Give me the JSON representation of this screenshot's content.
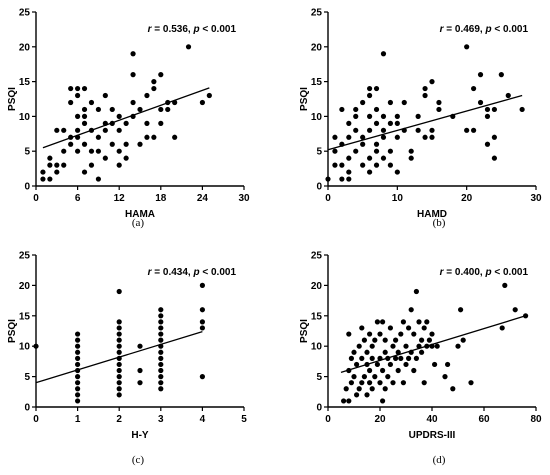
{
  "chart_data": [
    {
      "type": "scatter",
      "panel": "(a)",
      "xlabel": "HAMA",
      "ylabel": "PSQI",
      "xlim": [
        0,
        30
      ],
      "ylim": [
        0,
        25
      ],
      "xticks": [
        0,
        6,
        12,
        18,
        24,
        30
      ],
      "yticks": [
        0,
        5,
        10,
        15,
        20,
        25
      ],
      "annotation": {
        "r_label": "r",
        "r_value": "= 0.536, ",
        "p_label": "p",
        "p_value": " < 0.001"
      },
      "fit_line": {
        "x": [
          1,
          25
        ],
        "y": [
          5.5,
          14.1
        ]
      },
      "points": [
        [
          1,
          1
        ],
        [
          1,
          2
        ],
        [
          2,
          1
        ],
        [
          2,
          3
        ],
        [
          2,
          4
        ],
        [
          3,
          2
        ],
        [
          3,
          3
        ],
        [
          3,
          8
        ],
        [
          4,
          3
        ],
        [
          4,
          5
        ],
        [
          4,
          8
        ],
        [
          5,
          6
        ],
        [
          5,
          7
        ],
        [
          5,
          12
        ],
        [
          5,
          14
        ],
        [
          6,
          5
        ],
        [
          6,
          7
        ],
        [
          6,
          8
        ],
        [
          6,
          10
        ],
        [
          6,
          13
        ],
        [
          6,
          14
        ],
        [
          7,
          2
        ],
        [
          7,
          6
        ],
        [
          7,
          9
        ],
        [
          7,
          10
        ],
        [
          7,
          11
        ],
        [
          7,
          14
        ],
        [
          8,
          3
        ],
        [
          8,
          5
        ],
        [
          8,
          8
        ],
        [
          8,
          12
        ],
        [
          9,
          1
        ],
        [
          9,
          5
        ],
        [
          9,
          7
        ],
        [
          9,
          11
        ],
        [
          10,
          4
        ],
        [
          10,
          8
        ],
        [
          10,
          9
        ],
        [
          10,
          13
        ],
        [
          11,
          6
        ],
        [
          11,
          9
        ],
        [
          11,
          11
        ],
        [
          12,
          3
        ],
        [
          12,
          5
        ],
        [
          12,
          8
        ],
        [
          12,
          10
        ],
        [
          13,
          4
        ],
        [
          13,
          6
        ],
        [
          13,
          9
        ],
        [
          14,
          10
        ],
        [
          14,
          12
        ],
        [
          14,
          16
        ],
        [
          14,
          19
        ],
        [
          15,
          6
        ],
        [
          15,
          11
        ],
        [
          16,
          7
        ],
        [
          16,
          9
        ],
        [
          16,
          13
        ],
        [
          17,
          7
        ],
        [
          17,
          14
        ],
        [
          17,
          15
        ],
        [
          18,
          9
        ],
        [
          18,
          11
        ],
        [
          18,
          16
        ],
        [
          19,
          11
        ],
        [
          19,
          12
        ],
        [
          20,
          7
        ],
        [
          20,
          12
        ],
        [
          22,
          20
        ],
        [
          24,
          12
        ],
        [
          25,
          13
        ]
      ]
    },
    {
      "type": "scatter",
      "panel": "(b)",
      "xlabel": "HAMD",
      "ylabel": "PSQI",
      "xlim": [
        0,
        30
      ],
      "ylim": [
        0,
        25
      ],
      "xticks": [
        0,
        10,
        20,
        30
      ],
      "yticks": [
        0,
        5,
        10,
        15,
        20,
        25
      ],
      "annotation": {
        "r_label": "r",
        "r_value": "= 0.469, ",
        "p_label": "p",
        "p_value": " < 0.001"
      },
      "fit_line": {
        "x": [
          0,
          28
        ],
        "y": [
          5.2,
          13
        ]
      },
      "points": [
        [
          0,
          1
        ],
        [
          1,
          3
        ],
        [
          1,
          5
        ],
        [
          1,
          7
        ],
        [
          2,
          1
        ],
        [
          2,
          3
        ],
        [
          2,
          6
        ],
        [
          2,
          11
        ],
        [
          3,
          1
        ],
        [
          3,
          2
        ],
        [
          3,
          4
        ],
        [
          3,
          7
        ],
        [
          3,
          9
        ],
        [
          4,
          5
        ],
        [
          4,
          8
        ],
        [
          4,
          10
        ],
        [
          4,
          11
        ],
        [
          5,
          3
        ],
        [
          5,
          6
        ],
        [
          5,
          7
        ],
        [
          5,
          12
        ],
        [
          6,
          2
        ],
        [
          6,
          4
        ],
        [
          6,
          8
        ],
        [
          6,
          10
        ],
        [
          6,
          13
        ],
        [
          6,
          14
        ],
        [
          7,
          3
        ],
        [
          7,
          5
        ],
        [
          7,
          6
        ],
        [
          7,
          9
        ],
        [
          7,
          11
        ],
        [
          7,
          14
        ],
        [
          8,
          4
        ],
        [
          8,
          7
        ],
        [
          8,
          8
        ],
        [
          8,
          10
        ],
        [
          8,
          19
        ],
        [
          9,
          3
        ],
        [
          9,
          5
        ],
        [
          9,
          9
        ],
        [
          9,
          12
        ],
        [
          10,
          2
        ],
        [
          10,
          7
        ],
        [
          10,
          9
        ],
        [
          10,
          10
        ],
        [
          11,
          8
        ],
        [
          11,
          12
        ],
        [
          12,
          4
        ],
        [
          12,
          5
        ],
        [
          13,
          8
        ],
        [
          13,
          10
        ],
        [
          14,
          7
        ],
        [
          14,
          13
        ],
        [
          14,
          14
        ],
        [
          15,
          7
        ],
        [
          15,
          8
        ],
        [
          15,
          15
        ],
        [
          16,
          11
        ],
        [
          16,
          12
        ],
        [
          18,
          10
        ],
        [
          20,
          8
        ],
        [
          20,
          20
        ],
        [
          21,
          8
        ],
        [
          21,
          14
        ],
        [
          22,
          12
        ],
        [
          22,
          16
        ],
        [
          23,
          6
        ],
        [
          23,
          10
        ],
        [
          23,
          11
        ],
        [
          24,
          4
        ],
        [
          24,
          7
        ],
        [
          24,
          11
        ],
        [
          25,
          16
        ],
        [
          26,
          13
        ],
        [
          28,
          11
        ]
      ]
    },
    {
      "type": "scatter",
      "panel": "(c)",
      "xlabel": "H-Y",
      "ylabel": "PSQI",
      "xlim": [
        0,
        5
      ],
      "ylim": [
        0,
        25
      ],
      "xticks": [
        0,
        1,
        2,
        3,
        4,
        5
      ],
      "yticks": [
        0,
        5,
        10,
        15,
        20,
        25
      ],
      "annotation": {
        "r_label": "r",
        "r_value": "= 0.434, ",
        "p_label": "p",
        "p_value": " < 0.001"
      },
      "fit_line": {
        "x": [
          0,
          4
        ],
        "y": [
          4,
          12.4
        ]
      },
      "points": [
        [
          0,
          10
        ],
        [
          1,
          1
        ],
        [
          1,
          2
        ],
        [
          1,
          3
        ],
        [
          1,
          4
        ],
        [
          1,
          5
        ],
        [
          1,
          6
        ],
        [
          1,
          7
        ],
        [
          1,
          8
        ],
        [
          1,
          9
        ],
        [
          1,
          10
        ],
        [
          1,
          11
        ],
        [
          1,
          12
        ],
        [
          2,
          2
        ],
        [
          2,
          3
        ],
        [
          2,
          4
        ],
        [
          2,
          5
        ],
        [
          2,
          6
        ],
        [
          2,
          7
        ],
        [
          2,
          8
        ],
        [
          2,
          9
        ],
        [
          2,
          10
        ],
        [
          2,
          11
        ],
        [
          2,
          12
        ],
        [
          2,
          13
        ],
        [
          2,
          14
        ],
        [
          2,
          19
        ],
        [
          2.5,
          4
        ],
        [
          2.5,
          6
        ],
        [
          2.5,
          10
        ],
        [
          3,
          3
        ],
        [
          3,
          4
        ],
        [
          3,
          5
        ],
        [
          3,
          6
        ],
        [
          3,
          7
        ],
        [
          3,
          8
        ],
        [
          3,
          9
        ],
        [
          3,
          10
        ],
        [
          3,
          11
        ],
        [
          3,
          12
        ],
        [
          3,
          13
        ],
        [
          3,
          14
        ],
        [
          3,
          15
        ],
        [
          3,
          16
        ],
        [
          4,
          5
        ],
        [
          4,
          13
        ],
        [
          4,
          14
        ],
        [
          4,
          16
        ],
        [
          4,
          20
        ]
      ]
    },
    {
      "type": "scatter",
      "panel": "(d)",
      "xlabel": "UPDRS-III",
      "ylabel": "PSQI",
      "xlim": [
        0,
        80
      ],
      "ylim": [
        0,
        25
      ],
      "xticks": [
        0,
        20,
        40,
        60,
        80
      ],
      "yticks": [
        0,
        5,
        10,
        15,
        20,
        25
      ],
      "annotation": {
        "r_label": "r",
        "r_value": "= 0.400, ",
        "p_label": "p",
        "p_value": " < 0.001"
      },
      "fit_line": {
        "x": [
          5,
          76
        ],
        "y": [
          5.7,
          15
        ]
      },
      "points": [
        [
          6,
          1
        ],
        [
          7,
          3
        ],
        [
          8,
          1
        ],
        [
          8,
          6
        ],
        [
          8,
          12
        ],
        [
          9,
          4
        ],
        [
          9,
          8
        ],
        [
          10,
          5
        ],
        [
          10,
          9
        ],
        [
          11,
          2
        ],
        [
          11,
          7
        ],
        [
          12,
          3
        ],
        [
          12,
          10
        ],
        [
          13,
          4
        ],
        [
          13,
          8
        ],
        [
          13,
          13
        ],
        [
          14,
          5
        ],
        [
          14,
          11
        ],
        [
          15,
          2
        ],
        [
          15,
          7
        ],
        [
          15,
          9
        ],
        [
          16,
          4
        ],
        [
          16,
          6
        ],
        [
          16,
          12
        ],
        [
          17,
          3
        ],
        [
          17,
          8
        ],
        [
          17,
          10
        ],
        [
          18,
          5
        ],
        [
          18,
          11
        ],
        [
          19,
          7
        ],
        [
          19,
          14
        ],
        [
          20,
          4
        ],
        [
          20,
          8
        ],
        [
          20,
          12
        ],
        [
          21,
          1
        ],
        [
          21,
          6
        ],
        [
          21,
          14
        ],
        [
          22,
          3
        ],
        [
          22,
          9
        ],
        [
          22,
          11
        ],
        [
          23,
          5
        ],
        [
          23,
          8
        ],
        [
          24,
          7
        ],
        [
          24,
          13
        ],
        [
          25,
          4
        ],
        [
          25,
          10
        ],
        [
          26,
          8
        ],
        [
          26,
          11
        ],
        [
          27,
          6
        ],
        [
          27,
          9
        ],
        [
          28,
          8
        ],
        [
          28,
          12
        ],
        [
          29,
          4
        ],
        [
          29,
          14
        ],
        [
          30,
          7
        ],
        [
          30,
          10
        ],
        [
          31,
          8
        ],
        [
          31,
          13
        ],
        [
          32,
          9
        ],
        [
          32,
          16
        ],
        [
          33,
          6
        ],
        [
          33,
          12
        ],
        [
          34,
          8
        ],
        [
          34,
          19
        ],
        [
          35,
          10
        ],
        [
          35,
          14
        ],
        [
          36,
          9
        ],
        [
          36,
          11
        ],
        [
          37,
          4
        ],
        [
          37,
          13
        ],
        [
          38,
          10
        ],
        [
          38,
          14
        ],
        [
          39,
          11
        ],
        [
          40,
          10
        ],
        [
          40,
          12
        ],
        [
          41,
          7
        ],
        [
          42,
          10
        ],
        [
          45,
          5
        ],
        [
          46,
          7
        ],
        [
          48,
          3
        ],
        [
          50,
          10
        ],
        [
          51,
          16
        ],
        [
          52,
          11
        ],
        [
          55,
          4
        ],
        [
          67,
          13
        ],
        [
          68,
          20
        ],
        [
          72,
          16
        ],
        [
          76,
          15
        ]
      ]
    }
  ],
  "captions": [
    "(a)",
    "(b)",
    "(c)",
    "(d)"
  ]
}
